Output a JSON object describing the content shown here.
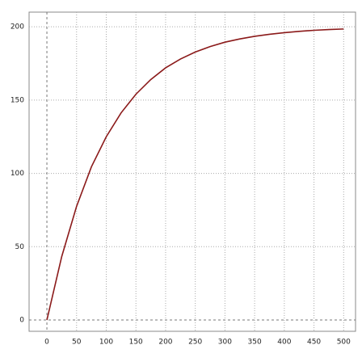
{
  "chart_data": {
    "type": "line",
    "x": [
      0,
      25,
      50,
      75,
      100,
      125,
      150,
      175,
      200,
      225,
      250,
      275,
      300,
      325,
      350,
      375,
      400,
      425,
      450,
      475,
      500
    ],
    "series": [
      {
        "color": "#8b1a1a",
        "values": [
          0,
          43.3,
          77.5,
          104.5,
          125,
          141.3,
          154,
          164,
          172,
          178,
          182.8,
          186.5,
          189.5,
          191.7,
          193.5,
          194.9,
          196,
          196.9,
          197.6,
          198.1,
          198.5
        ]
      }
    ],
    "xlim": [
      -30,
      520
    ],
    "ylim": [
      -7.7,
      210
    ],
    "xticks": [
      0,
      50,
      100,
      150,
      200,
      250,
      300,
      350,
      400,
      450,
      500
    ],
    "yticks": [
      0,
      50,
      100,
      150,
      200
    ],
    "grid": true
  }
}
